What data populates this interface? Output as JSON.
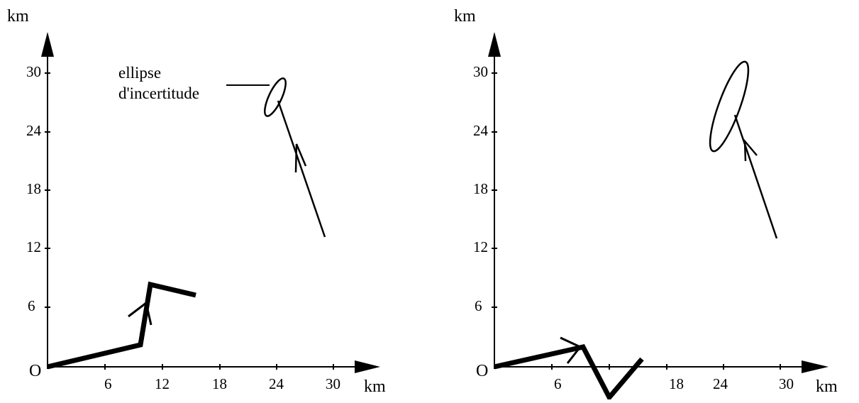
{
  "figure": {
    "background": "#ffffff",
    "ink": "#000000",
    "panels": [
      {
        "id": "left",
        "x_unit": "km",
        "y_unit": "km",
        "origin_label": "O",
        "x_ticks": [
          "6",
          "12",
          "18",
          "24",
          "30"
        ],
        "y_ticks": [
          "6",
          "12",
          "18",
          "24",
          "30"
        ],
        "annotation": {
          "line1": "ellipse",
          "line2": "d'incertitude"
        },
        "thick_track_km": [
          [
            0,
            0
          ],
          [
            9.5,
            2.2
          ],
          [
            10.5,
            8.2
          ],
          [
            15.3,
            7.1
          ]
        ],
        "thin_track_km": [
          [
            29.2,
            13.2
          ],
          [
            24.3,
            27.0
          ]
        ],
        "ellipse_km": {
          "center": [
            23.8,
            27.5
          ],
          "rx": 0.8,
          "ry": 2.2,
          "rotate_deg": 25
        }
      },
      {
        "id": "right",
        "x_unit": "km",
        "y_unit": "km",
        "origin_label": "O",
        "x_ticks": [
          "6",
          "18",
          "24",
          "30"
        ],
        "y_ticks": [
          "6",
          "12",
          "18",
          "24",
          "30"
        ],
        "thick_track_km": [
          [
            0,
            0
          ],
          [
            9.1,
            2.1
          ],
          [
            11.3,
            -3.2
          ],
          [
            15.1,
            0.8
          ]
        ],
        "thin_track_km": [
          [
            29.3,
            13.1
          ],
          [
            25.0,
            25.8
          ]
        ],
        "ellipse_km": {
          "center": [
            23.2,
            26.2
          ],
          "rx": 1.2,
          "ry": 4.8,
          "rotate_deg": 20
        }
      }
    ]
  }
}
